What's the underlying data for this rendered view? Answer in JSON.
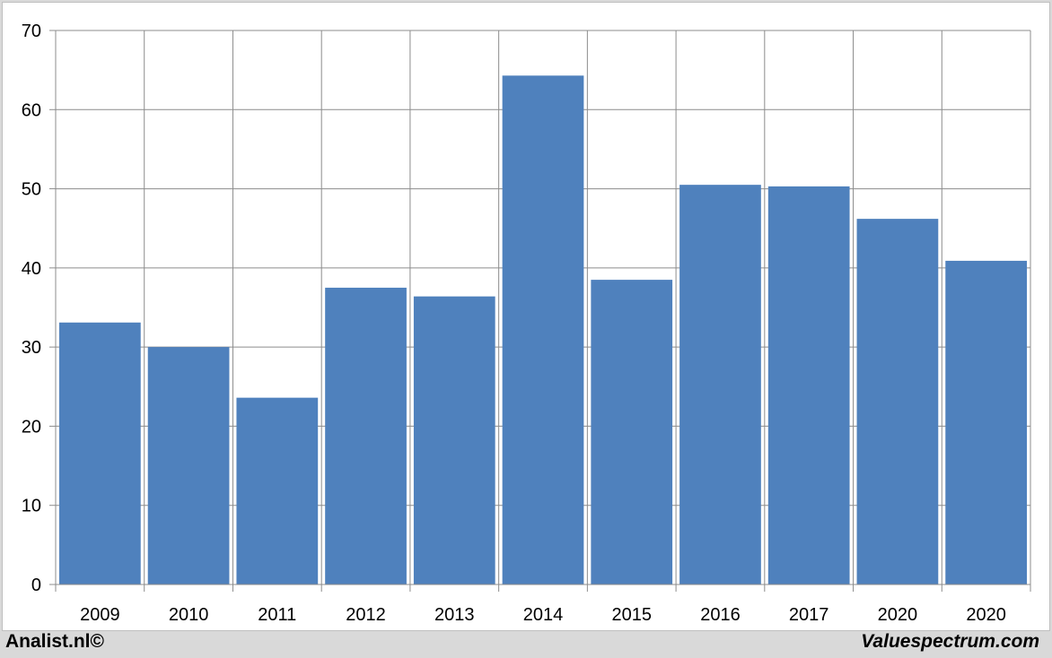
{
  "chart_data": {
    "type": "bar",
    "title": "",
    "xlabel": "",
    "ylabel": "",
    "categories": [
      "2009",
      "2010",
      "2011",
      "2012",
      "2013",
      "2014",
      "2015",
      "2016",
      "2017",
      "2020",
      "2020"
    ],
    "values": [
      33.1,
      30.0,
      23.6,
      37.5,
      36.4,
      64.3,
      38.5,
      50.5,
      50.3,
      46.2,
      40.9
    ],
    "ylim": [
      0,
      70
    ],
    "yticks": [
      0,
      10,
      20,
      30,
      40,
      50,
      60,
      70
    ],
    "grid": true,
    "bar_color": "#4f81bd"
  },
  "footer": {
    "left": "Analist.nl©",
    "right": "Valuespectrum.com"
  }
}
